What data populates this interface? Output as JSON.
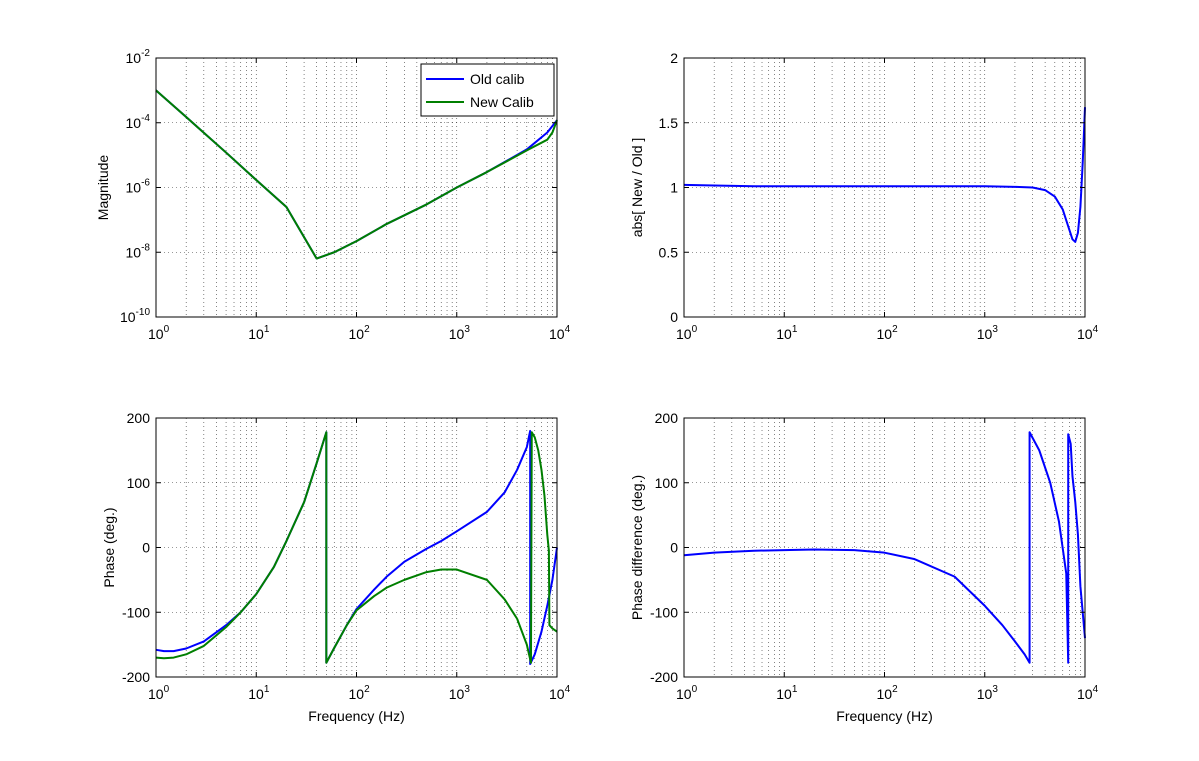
{
  "chart_data": [
    {
      "id": "magnitude",
      "type": "line",
      "xscale": "log",
      "yscale": "log",
      "xlim": [
        1,
        10000
      ],
      "ylim": [
        1e-10,
        0.01
      ],
      "xticks": [
        1,
        10,
        100,
        1000,
        10000
      ],
      "xtick_labels": [
        [
          "10",
          "0"
        ],
        [
          "10",
          "1"
        ],
        [
          "10",
          "2"
        ],
        [
          "10",
          "3"
        ],
        [
          "10",
          "4"
        ]
      ],
      "yticks": [
        1e-10,
        1e-08,
        1e-06,
        0.0001,
        0.01
      ],
      "ytick_labels": [
        [
          "10",
          "-10"
        ],
        [
          "10",
          "-8"
        ],
        [
          "10",
          "-6"
        ],
        [
          "10",
          "-4"
        ],
        [
          "10",
          "-2"
        ]
      ],
      "xlabel": "",
      "ylabel": "Magnitude",
      "grid": true,
      "legend": {
        "placement": "top-right",
        "entries": [
          "Old calib",
          "New Calib"
        ]
      },
      "series": [
        {
          "name": "Old calib",
          "color": "#0000ff",
          "x": [
            1,
            2,
            5,
            10,
            20,
            40,
            60,
            100,
            200,
            500,
            1000,
            2000,
            5000,
            8000,
            10000
          ],
          "y": [
            0.001,
            0.00015,
            1.2e-05,
            1.7e-06,
            2.5e-07,
            6.4e-09,
            1e-08,
            2.2e-08,
            7.5e-08,
            3e-07,
            1e-06,
            3e-06,
            1.5e-05,
            5e-05,
            0.00012
          ]
        },
        {
          "name": "New Calib",
          "color": "#007f00",
          "x": [
            1,
            2,
            5,
            10,
            20,
            40,
            60,
            100,
            200,
            500,
            1000,
            2000,
            5000,
            8000,
            9000,
            10000
          ],
          "y": [
            0.001,
            0.00015,
            1.2e-05,
            1.7e-06,
            2.5e-07,
            6.4e-09,
            1e-08,
            2.2e-08,
            7.5e-08,
            3e-07,
            1e-06,
            3e-06,
            1.4e-05,
            3e-05,
            5e-05,
            0.00012
          ]
        }
      ]
    },
    {
      "id": "ratio",
      "type": "line",
      "xscale": "log",
      "yscale": "linear",
      "xlim": [
        1,
        10000
      ],
      "ylim": [
        0,
        2
      ],
      "xticks": [
        1,
        10,
        100,
        1000,
        10000
      ],
      "xtick_labels": [
        [
          "10",
          "0"
        ],
        [
          "10",
          "1"
        ],
        [
          "10",
          "2"
        ],
        [
          "10",
          "3"
        ],
        [
          "10",
          "4"
        ]
      ],
      "yticks": [
        0,
        0.5,
        1,
        1.5,
        2
      ],
      "ytick_labels": [
        [
          "0",
          ""
        ],
        [
          "0.5",
          ""
        ],
        [
          "1",
          ""
        ],
        [
          "1.5",
          ""
        ],
        [
          "2",
          ""
        ]
      ],
      "xlabel": "",
      "ylabel": "abs[ New / Old ]",
      "grid": true,
      "series": [
        {
          "color": "#0000ff",
          "x": [
            1,
            2,
            5,
            10,
            100,
            1000,
            2000,
            3000,
            4000,
            5000,
            6000,
            7000,
            7500,
            8000,
            8500,
            9000,
            9500,
            10000
          ],
          "y": [
            1.02,
            1.015,
            1.01,
            1.01,
            1.01,
            1.01,
            1.005,
            1.0,
            0.98,
            0.93,
            0.83,
            0.67,
            0.6,
            0.58,
            0.65,
            0.85,
            1.2,
            1.62
          ]
        }
      ]
    },
    {
      "id": "phase",
      "type": "line",
      "xscale": "log",
      "yscale": "linear",
      "xlim": [
        1,
        10000
      ],
      "ylim": [
        -200,
        200
      ],
      "xticks": [
        1,
        10,
        100,
        1000,
        10000
      ],
      "xtick_labels": [
        [
          "10",
          "0"
        ],
        [
          "10",
          "1"
        ],
        [
          "10",
          "2"
        ],
        [
          "10",
          "3"
        ],
        [
          "10",
          "4"
        ]
      ],
      "yticks": [
        -200,
        -100,
        0,
        100,
        200
      ],
      "ytick_labels": [
        [
          "-200",
          ""
        ],
        [
          "-100",
          ""
        ],
        [
          "0",
          ""
        ],
        [
          "100",
          ""
        ],
        [
          "200",
          ""
        ]
      ],
      "xlabel": "Frequency (Hz)",
      "ylabel": "Phase (deg.)",
      "grid": true,
      "series": [
        {
          "name": "Old calib",
          "color": "#0000ff",
          "x": [
            1,
            1.2,
            1.5,
            2,
            3,
            5,
            7,
            10,
            15,
            20,
            30,
            40,
            50,
            50,
            60,
            80,
            100,
            150,
            200,
            300,
            500,
            700,
            1000,
            2000,
            3000,
            4000,
            5000,
            5400,
            5400,
            6000,
            7000,
            8000,
            9000,
            10000
          ],
          "y": [
            -158,
            -160,
            -160,
            -156,
            -145,
            -120,
            -100,
            -72,
            -30,
            10,
            70,
            130,
            178,
            -178,
            -155,
            -120,
            -95,
            -65,
            -45,
            -22,
            -2,
            10,
            25,
            55,
            85,
            120,
            155,
            180,
            -180,
            -165,
            -130,
            -90,
            -50,
            0
          ]
        },
        {
          "name": "New Calib",
          "color": "#007f00",
          "x": [
            1,
            1.2,
            1.5,
            2,
            3,
            5,
            7,
            10,
            15,
            20,
            30,
            40,
            50,
            50,
            60,
            80,
            100,
            150,
            200,
            300,
            500,
            700,
            1000,
            2000,
            3000,
            4000,
            5000,
            5500,
            5600,
            6000,
            6500,
            7000,
            7500,
            8000,
            8300,
            8400,
            9000,
            10000
          ],
          "y": [
            -170,
            -171,
            -170,
            -165,
            -152,
            -123,
            -100,
            -72,
            -30,
            10,
            70,
            130,
            178,
            -178,
            -155,
            -120,
            -97,
            -75,
            -62,
            -50,
            -38,
            -34,
            -34,
            -50,
            -80,
            -110,
            -150,
            -178,
            178,
            170,
            150,
            120,
            80,
            20,
            -5,
            -120,
            -125,
            -130
          ]
        }
      ]
    },
    {
      "id": "phase_difference",
      "type": "line",
      "xscale": "log",
      "yscale": "linear",
      "xlim": [
        1,
        10000
      ],
      "ylim": [
        -200,
        200
      ],
      "xticks": [
        1,
        10,
        100,
        1000,
        10000
      ],
      "xtick_labels": [
        [
          "10",
          "0"
        ],
        [
          "10",
          "1"
        ],
        [
          "10",
          "2"
        ],
        [
          "10",
          "3"
        ],
        [
          "10",
          "4"
        ]
      ],
      "yticks": [
        -200,
        -100,
        0,
        100,
        200
      ],
      "ytick_labels": [
        [
          "-200",
          ""
        ],
        [
          "-100",
          ""
        ],
        [
          "0",
          ""
        ],
        [
          "100",
          ""
        ],
        [
          "200",
          ""
        ]
      ],
      "xlabel": "Frequency (Hz)",
      "ylabel": "Phase difference (deg.)",
      "grid": true,
      "series": [
        {
          "color": "#0000ff",
          "x": [
            1,
            2,
            5,
            10,
            20,
            50,
            100,
            200,
            500,
            1000,
            1500,
            2000,
            2500,
            2800,
            2800,
            3500,
            4500,
            5500,
            6500,
            6800,
            6800,
            7200,
            7500,
            8000,
            8500,
            9000,
            10000
          ],
          "y": [
            -12,
            -8,
            -5,
            -4,
            -3,
            -4,
            -8,
            -18,
            -45,
            -90,
            -120,
            -145,
            -165,
            -178,
            178,
            150,
            100,
            40,
            -40,
            -178,
            175,
            160,
            110,
            70,
            20,
            -60,
            -140
          ]
        }
      ]
    }
  ]
}
